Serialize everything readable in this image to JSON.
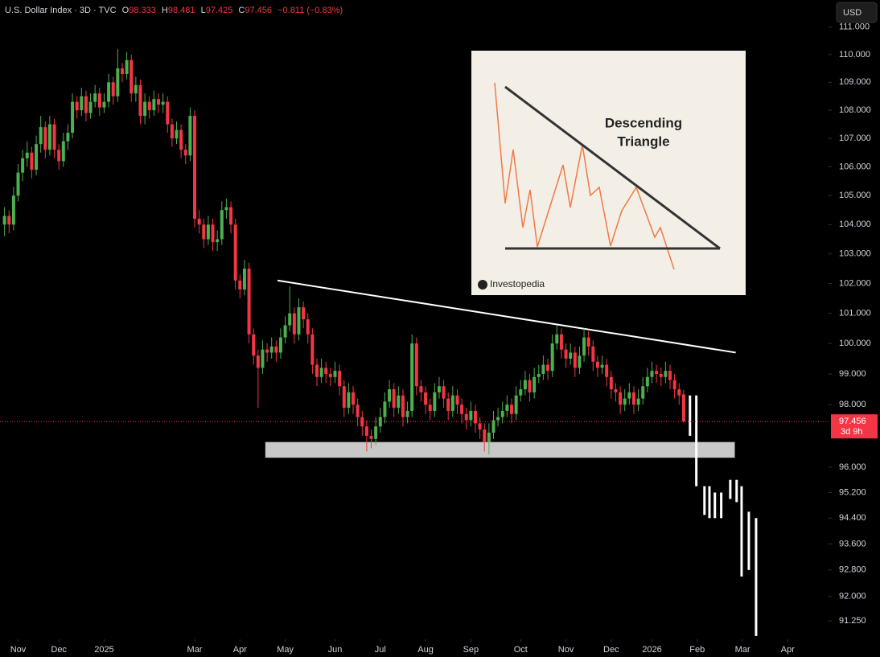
{
  "chart_data": {
    "type": "candlestick",
    "title": "U.S. Dollar Index · 3D · TVC",
    "ohlc_letters": [
      "O",
      "H",
      "L",
      "C"
    ],
    "change_label": "−0.811 (−0.83%)",
    "currency": "USD",
    "countdown": "3d 9h",
    "log_scale": true,
    "up_color": "#4caf50",
    "down_color": "#f23645",
    "ylim": [
      90.7,
      112
    ],
    "yticks": [
      {
        "value": 111,
        "label": "111.000"
      },
      {
        "value": 110,
        "label": "110.000"
      },
      {
        "value": 109,
        "label": "109.000"
      },
      {
        "value": 108,
        "label": "108.000"
      },
      {
        "value": 107,
        "label": "107.000"
      },
      {
        "value": 106,
        "label": "106.000"
      },
      {
        "value": 105,
        "label": "105.000"
      },
      {
        "value": 104,
        "label": "104.000"
      },
      {
        "value": 103,
        "label": "103.000"
      },
      {
        "value": 102,
        "label": "102.000"
      },
      {
        "value": 101,
        "label": "101.000"
      },
      {
        "value": 100,
        "label": "100.000"
      },
      {
        "value": 99,
        "label": "99.000"
      },
      {
        "value": 98,
        "label": "98.000"
      },
      {
        "value": 96,
        "label": "96.000"
      },
      {
        "value": 95.2,
        "label": "95.200"
      },
      {
        "value": 94.4,
        "label": "94.400"
      },
      {
        "value": 93.6,
        "label": "93.600"
      },
      {
        "value": 92.8,
        "label": "92.800"
      },
      {
        "value": 92,
        "label": "92.000"
      },
      {
        "value": 91.25,
        "label": "91.250"
      }
    ],
    "xlim": [
      -1,
      182
    ],
    "xticks": [
      {
        "value": 3,
        "label": "Nov"
      },
      {
        "value": 12,
        "label": "Dec"
      },
      {
        "value": 22,
        "label": "2025"
      },
      {
        "value": 42,
        "label": "Mar"
      },
      {
        "value": 52,
        "label": "Apr"
      },
      {
        "value": 62,
        "label": "May"
      },
      {
        "value": 73,
        "label": "Jun"
      },
      {
        "value": 83,
        "label": "Jul"
      },
      {
        "value": 93,
        "label": "Aug"
      },
      {
        "value": 103,
        "label": "Sep"
      },
      {
        "value": 114,
        "label": "Oct"
      },
      {
        "value": 124,
        "label": "Nov"
      },
      {
        "value": 134,
        "label": "Dec"
      },
      {
        "value": 143,
        "label": "2026"
      },
      {
        "value": 153,
        "label": "Feb"
      },
      {
        "value": 163,
        "label": "Mar"
      },
      {
        "value": 173,
        "label": "Apr"
      }
    ],
    "candles": [
      [
        104.0,
        104.6,
        103.6,
        104.3
      ],
      [
        104.3,
        104.5,
        103.7,
        104.0
      ],
      [
        104.0,
        105.3,
        103.8,
        105.0
      ],
      [
        105.0,
        106.1,
        104.8,
        105.8
      ],
      [
        105.8,
        106.6,
        105.5,
        106.3
      ],
      [
        106.3,
        106.9,
        106.0,
        106.5
      ],
      [
        106.5,
        106.7,
        105.6,
        105.9
      ],
      [
        105.9,
        107.1,
        105.7,
        106.8
      ],
      [
        106.8,
        107.8,
        106.5,
        107.4
      ],
      [
        107.4,
        107.6,
        106.3,
        106.6
      ],
      [
        106.6,
        107.8,
        106.4,
        107.5
      ],
      [
        107.5,
        107.7,
        106.3,
        106.6
      ],
      [
        106.6,
        106.8,
        105.9,
        106.2
      ],
      [
        106.2,
        107.2,
        106.0,
        106.9
      ],
      [
        106.9,
        107.5,
        106.6,
        107.2
      ],
      [
        107.2,
        108.6,
        107.0,
        108.3
      ],
      [
        108.3,
        108.5,
        107.7,
        108.0
      ],
      [
        108.0,
        108.8,
        107.8,
        108.5
      ],
      [
        108.5,
        108.7,
        107.6,
        107.9
      ],
      [
        107.9,
        108.6,
        107.7,
        108.3
      ],
      [
        108.3,
        108.9,
        108.1,
        108.6
      ],
      [
        108.6,
        108.8,
        107.8,
        108.1
      ],
      [
        108.1,
        108.6,
        107.9,
        108.3
      ],
      [
        108.3,
        109.3,
        108.1,
        109.0
      ],
      [
        109.0,
        109.2,
        108.2,
        108.5
      ],
      [
        108.5,
        110.2,
        108.3,
        109.5
      ],
      [
        109.5,
        109.7,
        109.0,
        109.3
      ],
      [
        109.3,
        110.1,
        109.1,
        109.8
      ],
      [
        109.8,
        110.0,
        108.3,
        108.6
      ],
      [
        108.6,
        109.2,
        108.3,
        108.9
      ],
      [
        108.9,
        109.1,
        107.5,
        107.8
      ],
      [
        107.8,
        108.6,
        107.5,
        108.3
      ],
      [
        108.3,
        108.5,
        107.7,
        108.0
      ],
      [
        108.0,
        108.7,
        107.8,
        108.4
      ],
      [
        108.4,
        108.6,
        107.9,
        108.2
      ],
      [
        108.2,
        108.6,
        107.9,
        108.3
      ],
      [
        108.3,
        108.5,
        107.2,
        107.5
      ],
      [
        107.5,
        107.7,
        106.7,
        107.0
      ],
      [
        107.0,
        107.6,
        106.8,
        107.3
      ],
      [
        107.3,
        107.5,
        106.3,
        106.6
      ],
      [
        106.6,
        106.8,
        106.1,
        106.4
      ],
      [
        106.4,
        108.1,
        106.2,
        107.8
      ],
      [
        107.8,
        108.0,
        103.9,
        104.2
      ],
      [
        104.2,
        104.5,
        103.7,
        104.0
      ],
      [
        104.0,
        104.2,
        103.2,
        103.5
      ],
      [
        103.5,
        104.3,
        103.3,
        104.0
      ],
      [
        104.0,
        104.2,
        103.1,
        103.4
      ],
      [
        103.4,
        103.8,
        103.1,
        103.5
      ],
      [
        103.5,
        104.8,
        103.3,
        104.5
      ],
      [
        104.5,
        104.9,
        104.2,
        104.6
      ],
      [
        104.6,
        104.8,
        103.7,
        104.0
      ],
      [
        104.0,
        104.2,
        101.8,
        102.1
      ],
      [
        102.1,
        102.3,
        101.5,
        101.8
      ],
      [
        101.8,
        102.8,
        101.6,
        102.5
      ],
      [
        102.5,
        102.7,
        100.0,
        100.3
      ],
      [
        100.3,
        100.5,
        99.3,
        99.6
      ],
      [
        99.6,
        99.8,
        97.9,
        99.2
      ],
      [
        99.2,
        100.1,
        99.0,
        99.8
      ],
      [
        99.8,
        100.0,
        99.4,
        99.7
      ],
      [
        99.7,
        100.2,
        99.5,
        99.9
      ],
      [
        99.9,
        100.1,
        99.4,
        99.7
      ],
      [
        99.7,
        100.5,
        99.5,
        100.2
      ],
      [
        100.2,
        100.9,
        100.0,
        100.6
      ],
      [
        100.6,
        101.9,
        100.4,
        101.0
      ],
      [
        101.0,
        101.2,
        100.0,
        100.3
      ],
      [
        100.3,
        101.5,
        100.1,
        101.2
      ],
      [
        101.2,
        101.4,
        100.5,
        100.8
      ],
      [
        100.8,
        101.0,
        100.0,
        100.3
      ],
      [
        100.3,
        100.5,
        99.0,
        99.3
      ],
      [
        99.3,
        99.5,
        98.6,
        98.9
      ],
      [
        98.9,
        99.5,
        98.7,
        99.2
      ],
      [
        99.2,
        99.4,
        98.7,
        99.0
      ],
      [
        99.0,
        99.2,
        98.6,
        98.9
      ],
      [
        98.9,
        99.4,
        98.7,
        99.1
      ],
      [
        99.1,
        99.3,
        98.3,
        98.6
      ],
      [
        98.6,
        98.8,
        97.6,
        97.9
      ],
      [
        97.9,
        98.7,
        97.7,
        98.4
      ],
      [
        98.4,
        98.6,
        97.7,
        98.0
      ],
      [
        98.0,
        98.2,
        97.3,
        97.6
      ],
      [
        97.6,
        97.8,
        97.0,
        97.3
      ],
      [
        97.3,
        97.5,
        96.5,
        97.0
      ],
      [
        97.0,
        97.2,
        96.6,
        96.9
      ],
      [
        96.9,
        97.6,
        96.7,
        97.3
      ],
      [
        97.3,
        97.9,
        97.1,
        97.6
      ],
      [
        97.6,
        98.4,
        97.4,
        98.1
      ],
      [
        98.1,
        98.8,
        97.9,
        98.5
      ],
      [
        98.5,
        98.7,
        97.6,
        97.9
      ],
      [
        97.9,
        98.6,
        97.7,
        98.3
      ],
      [
        98.3,
        98.5,
        97.3,
        97.6
      ],
      [
        97.6,
        98.1,
        97.4,
        97.8
      ],
      [
        97.8,
        100.3,
        97.6,
        100.0
      ],
      [
        100.0,
        100.2,
        98.3,
        98.6
      ],
      [
        98.6,
        98.8,
        98.1,
        98.4
      ],
      [
        98.4,
        98.6,
        97.7,
        98.0
      ],
      [
        98.0,
        98.2,
        97.5,
        97.8
      ],
      [
        97.8,
        98.7,
        97.6,
        98.4
      ],
      [
        98.4,
        98.9,
        98.2,
        98.6
      ],
      [
        98.6,
        98.8,
        97.9,
        98.2
      ],
      [
        98.2,
        98.4,
        97.5,
        97.8
      ],
      [
        97.8,
        98.6,
        97.6,
        98.3
      ],
      [
        98.3,
        98.5,
        97.7,
        98.0
      ],
      [
        98.0,
        98.2,
        97.4,
        97.7
      ],
      [
        97.7,
        97.9,
        97.2,
        97.5
      ],
      [
        97.5,
        98.1,
        97.3,
        97.8
      ],
      [
        97.8,
        98.0,
        97.1,
        97.4
      ],
      [
        97.4,
        97.6,
        96.9,
        97.2
      ],
      [
        97.2,
        97.4,
        96.5,
        96.8
      ],
      [
        96.8,
        97.4,
        96.4,
        97.1
      ],
      [
        97.1,
        97.8,
        96.9,
        97.5
      ],
      [
        97.5,
        97.9,
        97.3,
        97.6
      ],
      [
        97.6,
        98.1,
        97.4,
        97.8
      ],
      [
        97.8,
        98.3,
        97.6,
        98.0
      ],
      [
        98.0,
        98.2,
        97.4,
        97.7
      ],
      [
        97.7,
        98.6,
        97.5,
        98.3
      ],
      [
        98.3,
        98.8,
        98.1,
        98.5
      ],
      [
        98.5,
        99.1,
        98.3,
        98.8
      ],
      [
        98.8,
        99.0,
        98.1,
        98.4
      ],
      [
        98.4,
        99.2,
        98.2,
        98.9
      ],
      [
        98.9,
        99.3,
        98.7,
        99.0
      ],
      [
        99.0,
        99.6,
        98.8,
        99.3
      ],
      [
        99.3,
        99.5,
        98.8,
        99.1
      ],
      [
        99.1,
        100.3,
        98.9,
        100.0
      ],
      [
        100.0,
        100.6,
        99.8,
        100.3
      ],
      [
        100.3,
        100.5,
        99.5,
        99.8
      ],
      [
        99.8,
        100.0,
        99.2,
        99.5
      ],
      [
        99.5,
        100.0,
        99.3,
        99.7
      ],
      [
        99.7,
        99.9,
        98.9,
        99.2
      ],
      [
        99.2,
        99.9,
        99.0,
        99.6
      ],
      [
        99.6,
        100.5,
        99.4,
        100.2
      ],
      [
        100.2,
        100.4,
        99.6,
        99.9
      ],
      [
        99.9,
        100.1,
        99.1,
        99.4
      ],
      [
        99.4,
        99.6,
        98.9,
        99.2
      ],
      [
        99.2,
        99.6,
        99.0,
        99.3
      ],
      [
        99.3,
        99.5,
        98.6,
        98.9
      ],
      [
        98.9,
        99.1,
        98.2,
        98.5
      ],
      [
        98.5,
        98.7,
        98.1,
        98.4
      ],
      [
        98.4,
        98.6,
        97.7,
        98.0
      ],
      [
        98.0,
        98.5,
        97.8,
        98.2
      ],
      [
        98.2,
        98.7,
        98.0,
        98.4
      ],
      [
        98.4,
        98.6,
        97.7,
        98.0
      ],
      [
        98.0,
        98.5,
        97.8,
        98.2
      ],
      [
        98.2,
        98.9,
        98.0,
        98.6
      ],
      [
        98.6,
        99.2,
        98.4,
        98.9
      ],
      [
        98.9,
        99.4,
        98.7,
        99.1
      ],
      [
        99.1,
        99.3,
        98.7,
        99.0
      ],
      [
        99.0,
        99.2,
        98.6,
        98.9
      ],
      [
        98.9,
        99.4,
        98.7,
        99.1
      ],
      [
        99.1,
        99.3,
        98.5,
        98.8
      ],
      [
        98.8,
        99.0,
        98.2,
        98.5
      ],
      [
        98.5,
        98.7,
        98.0,
        98.3
      ],
      [
        98.333,
        98.481,
        97.425,
        97.456
      ]
    ],
    "projection": {
      "color": "#ffffff",
      "x": [
        151.4,
        152.8,
        154.6,
        155.7,
        156.9,
        158.3,
        160.3,
        161.7,
        162.8,
        164.4,
        166.0
      ],
      "high": [
        98.3,
        98.3,
        95.4,
        95.4,
        95.2,
        95.2,
        95.6,
        95.6,
        95.4,
        94.6,
        94.4
      ],
      "low": [
        97.0,
        95.4,
        94.5,
        94.4,
        94.4,
        94.4,
        95.0,
        94.9,
        92.6,
        92.8,
        90.8
      ]
    },
    "trendline": {
      "color": "#ffffff",
      "x": [
        60.3,
        161.5
      ],
      "y": [
        102.1,
        99.7
      ]
    },
    "support_zone": {
      "color": "#c8c8c8",
      "x": [
        57.6,
        161.3
      ],
      "y": [
        96.3,
        96.8
      ]
    },
    "inset": {
      "title_lines": [
        "Descending",
        "Triangle"
      ],
      "source": "Investopedia"
    }
  }
}
